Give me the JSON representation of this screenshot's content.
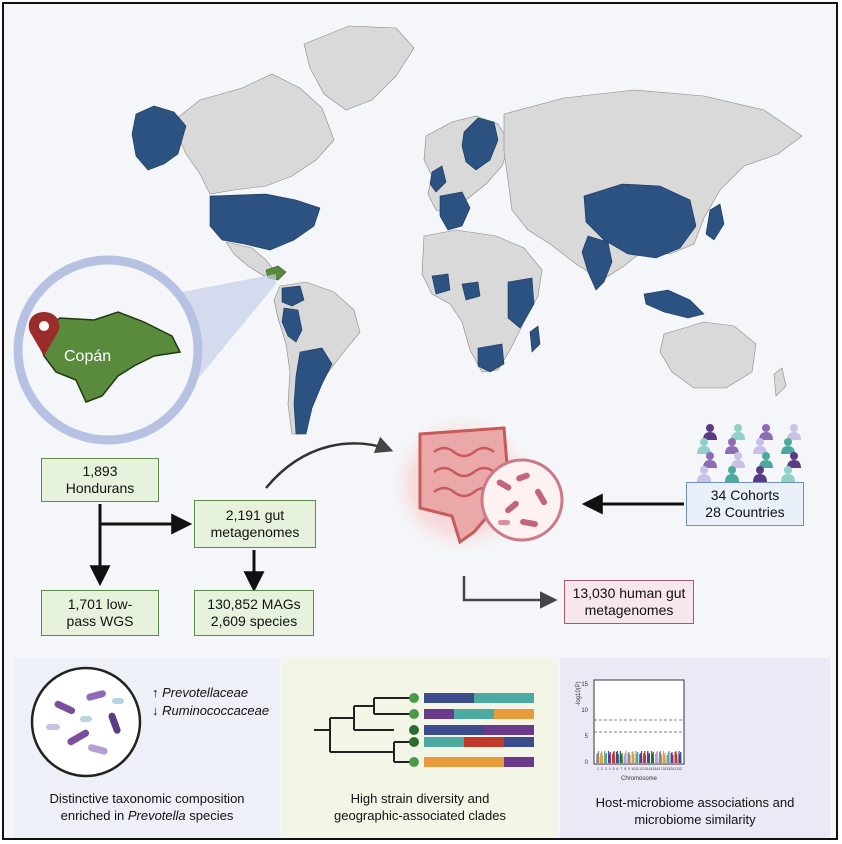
{
  "map": {
    "highlighted_color": "#2c5282",
    "base_color": "#d9d9d9",
    "honduras_color": "#5a8a3c"
  },
  "inset": {
    "label": "Copán",
    "pin_icon": "location-pin-icon"
  },
  "boxes": {
    "hondurans": {
      "line1": "1,893",
      "line2": "Hondurans"
    },
    "metagenomes": {
      "line1": "2,191 gut",
      "line2": "metagenomes"
    },
    "wgs": {
      "line1": "1,701 low-",
      "line2": "pass WGS"
    },
    "mags": {
      "line1": "130,852 MAGs",
      "line2": "2,609 species"
    },
    "human": {
      "line1": "13,030 human gut",
      "line2": "metagenomes"
    },
    "cohorts": {
      "line1": "34 Cohorts",
      "line2": "28 Countries"
    }
  },
  "icons": {
    "gut": "gut-icon",
    "bacteria": "bacteria-icon",
    "people": "people-group-icon"
  },
  "panels": {
    "taxonomy": {
      "up_taxon": "Prevotellaceae",
      "down_taxon": "Ruminococcaceae",
      "caption_line1": "Distinctive taxonomic composition",
      "caption_line2_prefix": "enriched in ",
      "caption_line2_italic": "Prevotella",
      "caption_line2_suffix": " species",
      "bg_color": "#eef0f8"
    },
    "strain": {
      "caption_line1": "High strain diversity and",
      "caption_line2": "geographic-associated clades",
      "bg_color": "#f3f5e6"
    },
    "host": {
      "caption_line1": "Host-microbiome associations and",
      "caption_line2": "microbiome similarity",
      "bg_color": "#ebe9f6",
      "manhattan": {
        "ylabel": "-log10(P)",
        "xlabel": "Chromosome",
        "yticks": [
          "15",
          "10",
          "5",
          "0"
        ],
        "xticks": [
          "1",
          "2",
          "3",
          "4",
          "5",
          "6",
          "7",
          "8",
          "9",
          "10",
          "11",
          "12",
          "13",
          "14",
          "15",
          "16",
          "17",
          "18",
          "19",
          "20",
          "21",
          "22"
        ]
      }
    }
  }
}
